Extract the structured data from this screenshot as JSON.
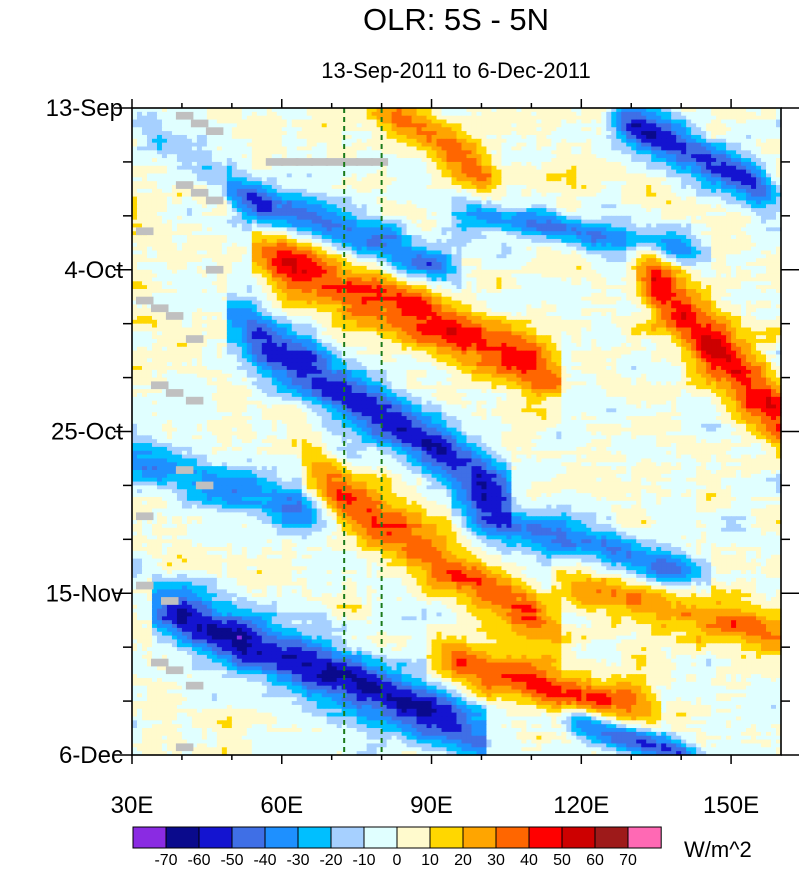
{
  "chart_data": {
    "type": "heatmap",
    "title": "OLR: 5S - 5N",
    "subtitle": "13-Sep-2011 to 6-Dec-2011",
    "units": "W/m^2",
    "x_range": [
      30,
      160
    ],
    "x_ticks": [
      {
        "value": 30,
        "label": "30E"
      },
      {
        "value": 60,
        "label": "60E"
      },
      {
        "value": 90,
        "label": "90E"
      },
      {
        "value": 120,
        "label": "120E"
      },
      {
        "value": 150,
        "label": "150E"
      }
    ],
    "y_range_days": [
      0,
      84
    ],
    "y_ticks": [
      {
        "value": 0,
        "label": "13-Sep"
      },
      {
        "value": 21,
        "label": "4-Oct"
      },
      {
        "value": 42,
        "label": "25-Oct"
      },
      {
        "value": 63,
        "label": "15-Nov"
      },
      {
        "value": 84,
        "label": "6-Dec"
      }
    ],
    "reference_lines_longitude": [
      72.5,
      80
    ],
    "colorbar": {
      "labels": [
        -70,
        -60,
        -50,
        -40,
        -30,
        -20,
        -10,
        0,
        10,
        20,
        30,
        40,
        50,
        60,
        70
      ],
      "colors": [
        "#8a2be2",
        "#0a0a8c",
        "#1414d0",
        "#3f6fe6",
        "#1e90ff",
        "#00bfff",
        "#a6d0ff",
        "#e0ffff",
        "#fffacd",
        "#ffd700",
        "#ffa500",
        "#ff6600",
        "#ff0000",
        "#cd0000",
        "#9e1a1a",
        "#ff69b4"
      ]
    },
    "bands": [
      {
        "day_start": 0,
        "lon_start": 80,
        "day_end": 8,
        "lon_end": 100,
        "value": 35,
        "width_days": 3
      },
      {
        "day_start": 2,
        "lon_start": 130,
        "day_end": 10,
        "lon_end": 155,
        "value": -55,
        "width_days": 3
      },
      {
        "day_start": 4,
        "lon_start": 35,
        "day_end": 12,
        "lon_end": 55,
        "value": -20,
        "width_days": 3
      },
      {
        "day_start": 12,
        "lon_start": 55,
        "day_end": 20,
        "lon_end": 90,
        "value": -40,
        "width_days": 3
      },
      {
        "day_start": 14,
        "lon_start": 100,
        "day_end": 18,
        "lon_end": 140,
        "value": -35,
        "width_days": 2
      },
      {
        "day_start": 20,
        "lon_start": 60,
        "day_end": 33,
        "lon_end": 110,
        "value": 45,
        "width_days": 4
      },
      {
        "day_start": 23,
        "lon_start": 135,
        "day_end": 40,
        "lon_end": 160,
        "value": 45,
        "width_days": 5
      },
      {
        "day_start": 30,
        "lon_start": 55,
        "day_end": 48,
        "lon_end": 100,
        "value": -55,
        "width_days": 4
      },
      {
        "day_start": 46,
        "lon_start": 30,
        "day_end": 52,
        "lon_end": 65,
        "value": -35,
        "width_days": 3
      },
      {
        "day_start": 50,
        "lon_start": 70,
        "day_end": 66,
        "lon_end": 110,
        "value": 40,
        "width_days": 4
      },
      {
        "day_start": 53,
        "lon_start": 100,
        "day_end": 60,
        "lon_end": 140,
        "value": -40,
        "width_days": 3
      },
      {
        "day_start": 62,
        "lon_start": 120,
        "day_end": 68,
        "lon_end": 160,
        "value": 30,
        "width_days": 3
      },
      {
        "day_start": 66,
        "lon_start": 40,
        "day_end": 80,
        "lon_end": 95,
        "value": -60,
        "width_days": 4
      },
      {
        "day_start": 72,
        "lon_start": 95,
        "day_end": 78,
        "lon_end": 130,
        "value": 40,
        "width_days": 3
      },
      {
        "day_start": 80,
        "lon_start": 120,
        "day_end": 84,
        "lon_end": 140,
        "value": -50,
        "width_days": 2
      }
    ],
    "missing_cells": [
      {
        "lon": 40,
        "day": 1
      },
      {
        "lon": 43,
        "day": 2
      },
      {
        "lon": 46,
        "day": 3
      },
      {
        "lon": 40,
        "day": 10
      },
      {
        "lon": 43,
        "day": 11
      },
      {
        "lon": 46,
        "day": 12
      },
      {
        "lon": 32,
        "day": 16
      },
      {
        "lon": 46,
        "day": 21
      },
      {
        "lon": 32,
        "day": 25
      },
      {
        "lon": 35,
        "day": 26
      },
      {
        "lon": 38,
        "day": 27
      },
      {
        "lon": 42,
        "day": 30
      },
      {
        "lon": 35,
        "day": 36
      },
      {
        "lon": 38,
        "day": 37
      },
      {
        "lon": 42,
        "day": 38
      },
      {
        "lon": 40,
        "day": 47
      },
      {
        "lon": 44,
        "day": 49
      },
      {
        "lon": 32,
        "day": 53
      },
      {
        "lon": 32,
        "day": 62
      },
      {
        "lon": 37,
        "day": 64
      },
      {
        "lon": 35,
        "day": 72
      },
      {
        "lon": 38,
        "day": 73
      },
      {
        "lon": 42,
        "day": 75
      },
      {
        "lon": 40,
        "day": 83
      },
      {
        "lon": 58,
        "day": 7
      },
      {
        "lon": 61,
        "day": 7
      },
      {
        "lon": 64,
        "day": 7
      },
      {
        "lon": 67,
        "day": 7
      },
      {
        "lon": 70,
        "day": 7
      },
      {
        "lon": 73,
        "day": 7
      },
      {
        "lon": 76,
        "day": 7
      },
      {
        "lon": 79,
        "day": 7
      }
    ]
  }
}
